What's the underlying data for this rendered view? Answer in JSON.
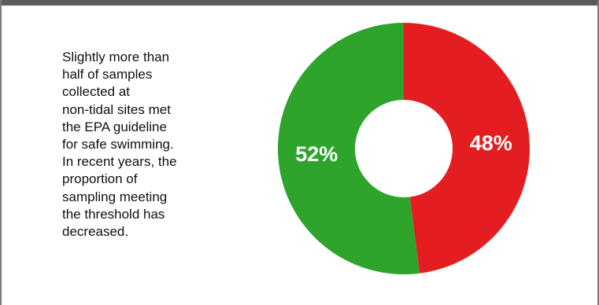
{
  "description": "Slightly more than\nhalf of samples\ncollected at\nnon-tidal sites met\nthe EPA guideline\nfor safe swimming.\nIn recent years, the\nproportion of\nsampling meeting\nthe threshold has\ndecreased.",
  "colors": {
    "met": "#2ea42d",
    "not_met": "#e41e20",
    "frame": "#5a5a5a"
  },
  "chart_data": {
    "type": "pie",
    "donut": true,
    "title": "",
    "slices": [
      {
        "label": "",
        "value": 48,
        "display": "48%",
        "color": "#e41e20"
      },
      {
        "label": "",
        "value": 52,
        "display": "52%",
        "color": "#2ea42d"
      }
    ],
    "start_angle_deg": 0,
    "direction": "clockwise"
  }
}
